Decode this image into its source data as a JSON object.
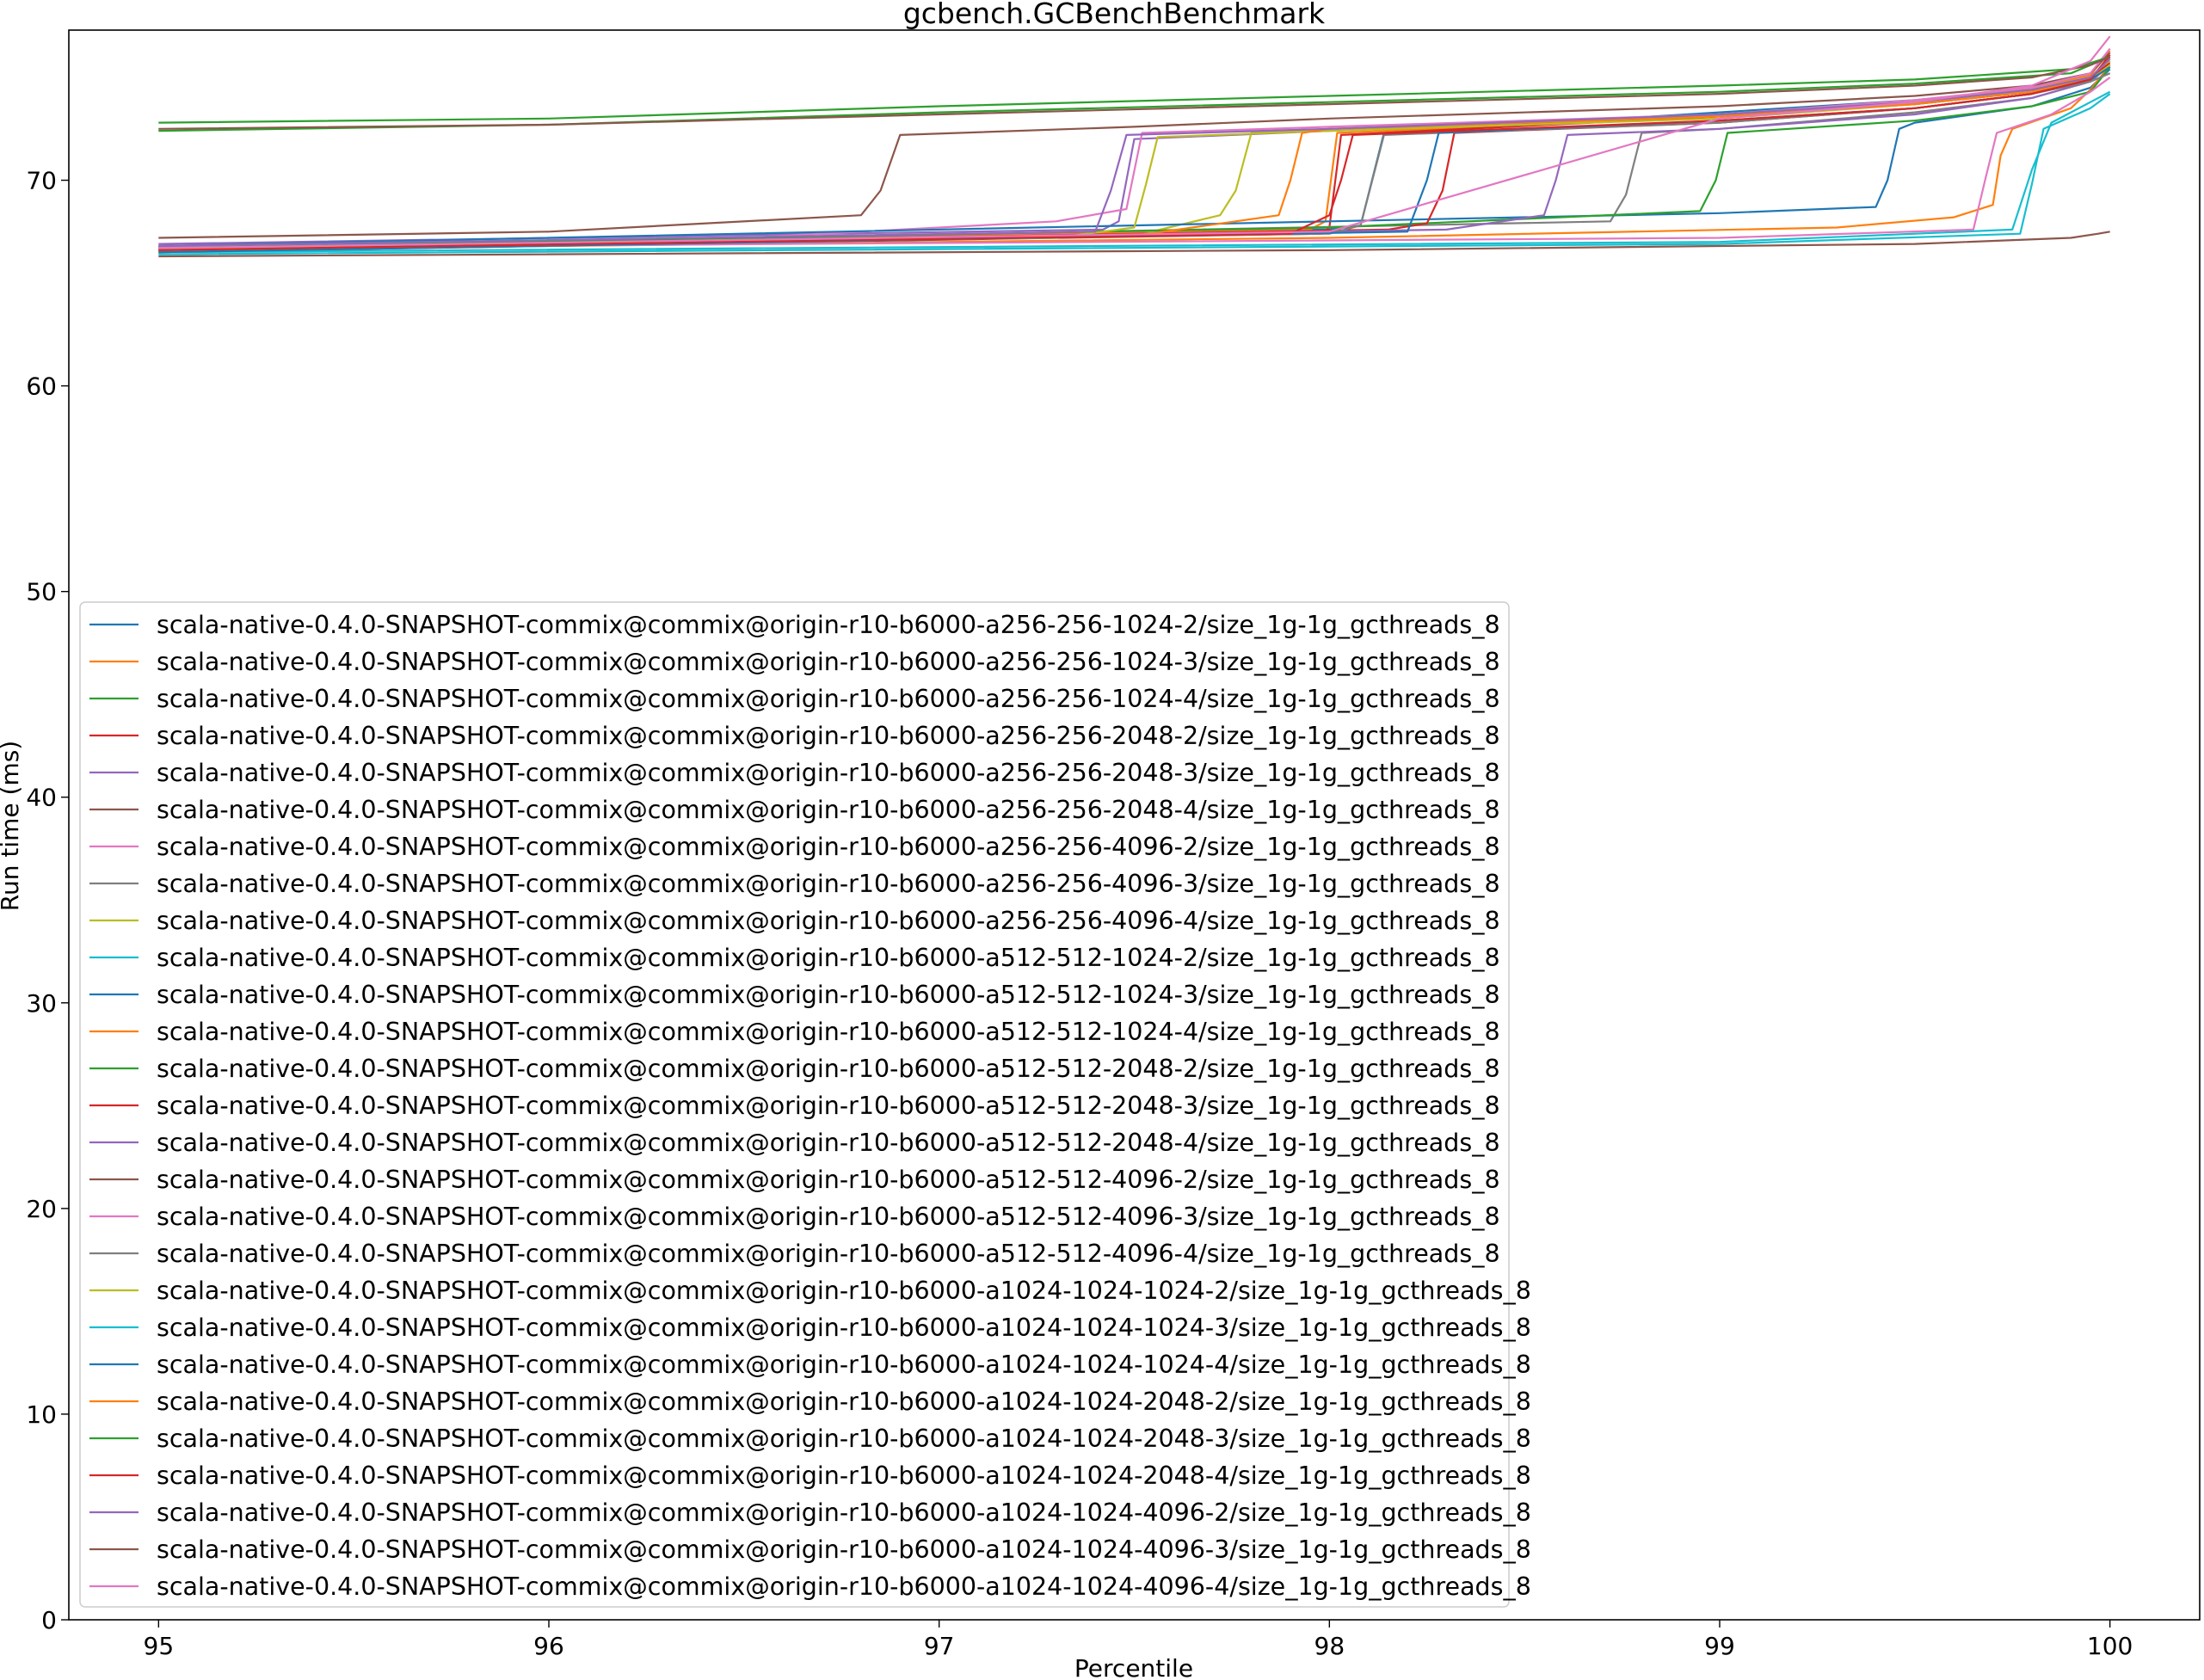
{
  "chart_data": {
    "type": "line",
    "title": "gcbench.GCBenchBenchmark",
    "xlabel": "Percentile",
    "ylabel": "Run time (ms)",
    "xlim": [
      94.77,
      100.23
    ],
    "ylim": [
      0,
      77.3
    ],
    "xticks": [
      95,
      96,
      97,
      98,
      99,
      100
    ],
    "yticks": [
      0,
      10,
      20,
      30,
      40,
      50,
      60,
      70
    ],
    "grid": false,
    "legend_position": "lower-left",
    "series": [
      {
        "name": "scala-native-0.4.0-SNAPSHOT-commix@commix@origin-r10-b6000-a256-256-1024-2/size_1g-1g_gcthreads_8",
        "color": "#1f77b4",
        "x": [
          95,
          98.0,
          98.08,
          98.14,
          99,
          99.5,
          99.8,
          99.95,
          100
        ],
        "y": [
          66.6,
          67.6,
          67.8,
          72.3,
          73.3,
          73.9,
          74.4,
          75.0,
          75.9
        ]
      },
      {
        "name": "scala-native-0.4.0-SNAPSHOT-commix@commix@origin-r10-b6000-a256-256-1024-3/size_1g-1g_gcthreads_8",
        "color": "#ff7f0e",
        "x": [
          95,
          97.95,
          97.99,
          98.02,
          99,
          99.5,
          99.8,
          99.95,
          100
        ],
        "y": [
          66.7,
          67.6,
          68.0,
          72.3,
          73.1,
          73.8,
          74.5,
          75.1,
          76.3
        ]
      },
      {
        "name": "scala-native-0.4.0-SNAPSHOT-commix@commix@origin-r10-b6000-a256-256-1024-4/size_1g-1g_gcthreads_8",
        "color": "#2ca02c",
        "x": [
          95,
          96,
          97,
          98,
          99,
          99.5,
          99.9,
          100
        ],
        "y": [
          72.4,
          72.7,
          73.3,
          73.8,
          74.3,
          74.7,
          75.2,
          76.0
        ]
      },
      {
        "name": "scala-native-0.4.0-SNAPSHOT-commix@commix@origin-r10-b6000-a256-256-2048-2/size_1g-1g_gcthreads_8",
        "color": "#d62728",
        "x": [
          95,
          97.98,
          98.0,
          98.03,
          99,
          99.5,
          99.8,
          99.95,
          100
        ],
        "y": [
          66.5,
          67.4,
          67.7,
          72.2,
          73.1,
          73.7,
          74.3,
          74.9,
          76.0
        ]
      },
      {
        "name": "scala-native-0.4.0-SNAPSHOT-commix@commix@origin-r10-b6000-a256-256-2048-3/size_1g-1g_gcthreads_8",
        "color": "#9467bd",
        "x": [
          95,
          97.42,
          97.46,
          97.5,
          98,
          99,
          99.5,
          99.8,
          99.95,
          100
        ],
        "y": [
          66.9,
          67.6,
          68.0,
          72.0,
          72.4,
          73.2,
          73.8,
          74.4,
          74.9,
          75.8
        ]
      },
      {
        "name": "scala-native-0.4.0-SNAPSHOT-commix@commix@origin-r10-b6000-a256-256-2048-4/size_1g-1g_gcthreads_8",
        "color": "#8c564b",
        "x": [
          95,
          96,
          96.8,
          96.85,
          96.9,
          97.5,
          98,
          99,
          99.5,
          99.8,
          99.95,
          100
        ],
        "y": [
          67.2,
          67.5,
          68.3,
          69.5,
          72.2,
          72.6,
          73.0,
          73.6,
          74.1,
          74.6,
          75.2,
          76.2
        ]
      },
      {
        "name": "scala-native-0.4.0-SNAPSHOT-commix@commix@origin-r10-b6000-a256-256-4096-2/size_1g-1g_gcthreads_8",
        "color": "#e377c2",
        "x": [
          95,
          96.5,
          97.3,
          97.48,
          97.52,
          98,
          99,
          99.5,
          99.8,
          99.95,
          100
        ],
        "y": [
          66.8,
          67.2,
          68.0,
          68.6,
          72.3,
          72.6,
          73.2,
          73.9,
          74.5,
          75.2,
          76.4
        ]
      },
      {
        "name": "scala-native-0.4.0-SNAPSHOT-commix@commix@origin-r10-b6000-a256-256-4096-3/size_1g-1g_gcthreads_8",
        "color": "#7f7f7f",
        "x": [
          95,
          98.72,
          98.76,
          98.8,
          99,
          99.5,
          99.8,
          99.95,
          100
        ],
        "y": [
          66.6,
          68.0,
          69.3,
          72.3,
          72.5,
          73.3,
          74.0,
          74.8,
          75.6
        ]
      },
      {
        "name": "scala-native-0.4.0-SNAPSHOT-commix@commix@origin-r10-b6000-a256-256-4096-4/size_1g-1g_gcthreads_8",
        "color": "#bcbd22",
        "x": [
          95,
          97.5,
          97.72,
          97.76,
          97.8,
          98,
          99,
          99.5,
          99.8,
          99.95,
          100
        ],
        "y": [
          66.8,
          67.3,
          68.3,
          69.5,
          72.3,
          72.5,
          73.2,
          73.8,
          74.4,
          75.0,
          75.8
        ]
      },
      {
        "name": "scala-native-0.4.0-SNAPSHOT-commix@commix@origin-r10-b6000-a512-512-1024-2/size_1g-1g_gcthreads_8",
        "color": "#17becf",
        "x": [
          95,
          99,
          99.75,
          99.8,
          99.85,
          99.95,
          100
        ],
        "y": [
          66.5,
          67.0,
          67.6,
          70.5,
          72.8,
          73.8,
          74.3
        ]
      },
      {
        "name": "scala-native-0.4.0-SNAPSHOT-commix@commix@origin-r10-b6000-a512-512-1024-3/size_1g-1g_gcthreads_8",
        "color": "#1f77b4",
        "x": [
          95,
          98,
          99,
          99.4,
          99.43,
          99.46,
          99.5,
          99.8,
          99.95,
          100
        ],
        "y": [
          66.8,
          68.0,
          68.4,
          68.7,
          70.0,
          72.5,
          72.8,
          73.6,
          74.5,
          75.4
        ]
      },
      {
        "name": "scala-native-0.4.0-SNAPSHOT-commix@commix@origin-r10-b6000-a512-512-1024-4/size_1g-1g_gcthreads_8",
        "color": "#ff7f0e",
        "x": [
          95,
          98,
          99.3,
          99.6,
          99.7,
          99.72,
          99.75,
          99.9,
          99.95,
          100
        ],
        "y": [
          66.6,
          67.2,
          67.7,
          68.2,
          68.8,
          71.2,
          72.5,
          73.5,
          74.4,
          75.6
        ]
      },
      {
        "name": "scala-native-0.4.0-SNAPSHOT-commix@commix@origin-r10-b6000-a512-512-2048-2/size_1g-1g_gcthreads_8",
        "color": "#2ca02c",
        "x": [
          95,
          98,
          98.95,
          98.99,
          99.02,
          99.5,
          99.8,
          99.95,
          100
        ],
        "y": [
          66.7,
          67.7,
          68.5,
          70.0,
          72.3,
          72.9,
          73.6,
          74.3,
          75.5
        ]
      },
      {
        "name": "scala-native-0.4.0-SNAPSHOT-commix@commix@origin-r10-b6000-a512-512-2048-3/size_1g-1g_gcthreads_8",
        "color": "#d62728",
        "x": [
          95,
          98.15,
          98.25,
          98.29,
          98.32,
          99,
          99.5,
          99.8,
          99.95,
          100
        ],
        "y": [
          66.6,
          67.6,
          67.9,
          69.5,
          72.3,
          72.8,
          73.5,
          74.2,
          75.0,
          75.7
        ]
      },
      {
        "name": "scala-native-0.4.0-SNAPSHOT-commix@commix@origin-r10-b6000-a512-512-2048-4/size_1g-1g_gcthreads_8",
        "color": "#9467bd",
        "x": [
          95,
          98.3,
          98.55,
          98.58,
          98.61,
          99,
          99.5,
          99.8,
          99.95,
          100
        ],
        "y": [
          66.6,
          67.6,
          68.3,
          70.0,
          72.2,
          72.5,
          73.2,
          74.0,
          74.8,
          75.6
        ]
      },
      {
        "name": "scala-native-0.4.0-SNAPSHOT-commix@commix@origin-r10-b6000-a512-512-4096-2/size_1g-1g_gcthreads_8",
        "color": "#8c564b",
        "x": [
          95,
          98,
          99.5,
          99.9,
          99.97,
          100
        ],
        "y": [
          66.3,
          66.6,
          66.9,
          67.2,
          67.4,
          67.5
        ]
      },
      {
        "name": "scala-native-0.4.0-SNAPSHOT-commix@commix@origin-r10-b6000-a512-512-4096-3/size_1g-1g_gcthreads_8",
        "color": "#e377c2",
        "x": [
          95,
          99,
          99.65,
          99.68,
          99.71,
          99.85,
          99.95,
          100
        ],
        "y": [
          66.7,
          67.2,
          67.6,
          70.0,
          72.3,
          73.2,
          74.3,
          75.0
        ]
      },
      {
        "name": "scala-native-0.4.0-SNAPSHOT-commix@commix@origin-r10-b6000-a512-512-4096-4/size_1g-1g_gcthreads_8",
        "color": "#7f7f7f",
        "x": [
          95,
          98,
          98.08,
          98.11,
          98.14,
          99,
          99.5,
          99.8,
          99.95,
          100
        ],
        "y": [
          66.7,
          67.4,
          67.8,
          70.0,
          72.2,
          72.8,
          73.5,
          74.2,
          74.8,
          75.2
        ]
      },
      {
        "name": "scala-native-0.4.0-SNAPSHOT-commix@commix@origin-r10-b6000-a1024-1024-1024-2/size_1g-1g_gcthreads_8",
        "color": "#bcbd22",
        "x": [
          95,
          97.3,
          97.5,
          97.53,
          97.56,
          98,
          99,
          99.5,
          99.8,
          99.95,
          100
        ],
        "y": [
          66.7,
          67.2,
          67.7,
          69.8,
          72.1,
          72.4,
          73.0,
          73.7,
          74.3,
          74.9,
          75.6
        ]
      },
      {
        "name": "scala-native-0.4.0-SNAPSHOT-commix@commix@origin-r10-b6000-a1024-1024-1024-3/size_1g-1g_gcthreads_8",
        "color": "#17becf",
        "x": [
          95,
          99,
          99.77,
          99.8,
          99.83,
          99.95,
          100
        ],
        "y": [
          66.4,
          66.9,
          67.4,
          69.8,
          72.5,
          73.5,
          74.2
        ]
      },
      {
        "name": "scala-native-0.4.0-SNAPSHOT-commix@commix@origin-r10-b6000-a1024-1024-1024-4/size_1g-1g_gcthreads_8",
        "color": "#1f77b4",
        "x": [
          95,
          98.2,
          98.25,
          98.28,
          99,
          99.5,
          99.8,
          99.95,
          100
        ],
        "y": [
          66.5,
          67.5,
          70.0,
          72.3,
          72.9,
          73.5,
          74.2,
          74.9,
          75.5
        ]
      },
      {
        "name": "scala-native-0.4.0-SNAPSHOT-commix@commix@origin-r10-b6000-a1024-1024-2048-2/size_1g-1g_gcthreads_8",
        "color": "#ff7f0e",
        "x": [
          95,
          97.5,
          97.87,
          97.9,
          97.93,
          98,
          99,
          99.5,
          99.8,
          99.95,
          100
        ],
        "y": [
          66.6,
          67.3,
          68.3,
          70.0,
          72.3,
          72.5,
          73.1,
          73.7,
          74.3,
          75.0,
          75.9
        ]
      },
      {
        "name": "scala-native-0.4.0-SNAPSHOT-commix@commix@origin-r10-b6000-a1024-1024-2048-3/size_1g-1g_gcthreads_8",
        "color": "#2ca02c",
        "x": [
          95,
          96,
          97,
          98,
          99,
          99.5,
          99.9,
          100
        ],
        "y": [
          72.8,
          73.0,
          73.6,
          74.1,
          74.6,
          74.9,
          75.4,
          76.0
        ]
      },
      {
        "name": "scala-native-0.4.0-SNAPSHOT-commix@commix@origin-r10-b6000-a1024-1024-2048-4/size_1g-1g_gcthreads_8",
        "color": "#d62728",
        "x": [
          95,
          97.9,
          98.0,
          98.03,
          98.06,
          99,
          99.5,
          99.8,
          99.95,
          100
        ],
        "y": [
          66.6,
          67.4,
          68.3,
          70.0,
          72.2,
          72.9,
          73.5,
          74.2,
          74.9,
          76.1
        ]
      },
      {
        "name": "scala-native-0.4.0-SNAPSHOT-commix@commix@origin-r10-b6000-a1024-1024-4096-2/size_1g-1g_gcthreads_8",
        "color": "#9467bd",
        "x": [
          95,
          97.4,
          97.44,
          97.48,
          98,
          99,
          99.5,
          99.8,
          99.95,
          100
        ],
        "y": [
          66.8,
          67.5,
          69.5,
          72.2,
          72.5,
          73.2,
          73.8,
          74.4,
          75.0,
          75.9
        ]
      },
      {
        "name": "scala-native-0.4.0-SNAPSHOT-commix@commix@origin-r10-b6000-a1024-1024-4096-3/size_1g-1g_gcthreads_8",
        "color": "#8c564b",
        "x": [
          95,
          96,
          97,
          98,
          99,
          99.5,
          99.8,
          99.95,
          100
        ],
        "y": [
          72.5,
          72.7,
          73.2,
          73.7,
          74.2,
          74.6,
          75.0,
          75.6,
          76.0
        ]
      },
      {
        "name": "scala-native-0.4.0-SNAPSHOT-commix@commix@origin-r10-b6000-a1024-1024-4096-4/size_1g-1g_gcthreads_8",
        "color": "#e377c2",
        "x": [
          95,
          98,
          99,
          99.5,
          99.8,
          99.95,
          100
        ],
        "y": [
          66.7,
          67.5,
          73.0,
          73.8,
          74.6,
          75.8,
          77.0
        ]
      }
    ]
  }
}
